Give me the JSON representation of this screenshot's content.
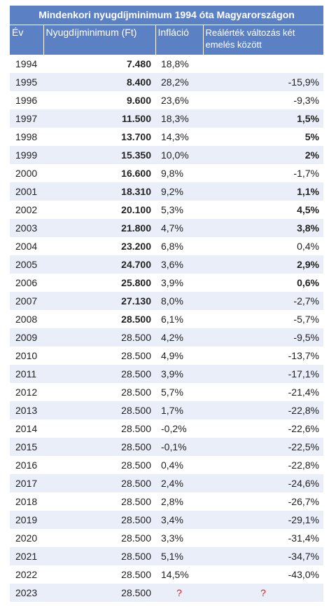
{
  "table": {
    "title": "Mindenkori nyugdíjminimum 1994 óta Magyarországon",
    "header": [
      "Év",
      "Nyugdíjminimum (Ft)",
      "Infláció",
      "Reálérték változás két emelés között"
    ],
    "rows": [
      [
        "1994",
        "7.480",
        "18,8%",
        null
      ],
      [
        "1995",
        "8.400",
        "28,2%",
        "-15,9%"
      ],
      [
        "1996",
        "9.600",
        "23,6%",
        "-9,3%"
      ],
      [
        "1997",
        "11.500",
        "18,3%",
        "1,5%"
      ],
      [
        "1998",
        "13.700",
        "14,3%",
        "5%"
      ],
      [
        "1999",
        "15.350",
        "10,0%",
        "2%"
      ],
      [
        "2000",
        "16.600",
        "9,8%",
        "-1,7%"
      ],
      [
        "2001",
        "18.310",
        "9,2%",
        "1,1%"
      ],
      [
        "2002",
        "20.100",
        "5,3%",
        "4,5%"
      ],
      [
        "2003",
        "21.800",
        "4,7%",
        "3,8%"
      ],
      [
        "2004",
        "23.200",
        "6,8%",
        "0,4%"
      ],
      [
        "2005",
        "24.700",
        "3,6%",
        "2,9%"
      ],
      [
        "2006",
        "25.800",
        "3,9%",
        "0,6%"
      ],
      [
        "2007",
        "27.130",
        "8,0%",
        "-2,7%"
      ],
      [
        "2008",
        "28.500",
        "6,1%",
        "-5,7%"
      ],
      [
        "2009",
        "28.500",
        "4,2%",
        "-9,5%"
      ],
      [
        "2010",
        "28.500",
        "4,9%",
        "-13,7%"
      ],
      [
        "2011",
        "28.500",
        "3,9%",
        "-17,1%"
      ],
      [
        "2012",
        "28.500",
        "5,7%",
        "-21,4%"
      ],
      [
        "2013",
        "28.500",
        "1,7%",
        "-22,8%"
      ],
      [
        "2014",
        "28.500",
        "-0,2%",
        "-22,6%"
      ],
      [
        "2015",
        "28.500",
        "-0,1%",
        "-22,5%"
      ],
      [
        "2016",
        "28.500",
        "0,4%",
        "-22,8%"
      ],
      [
        "2017",
        "28.500",
        "2,4%",
        "-24,6%"
      ],
      [
        "2018",
        "28.500",
        "2,8%",
        "-26,7%"
      ],
      [
        "2019",
        "28.500",
        "3,4%",
        "-29,1%"
      ],
      [
        "2020",
        "28.500",
        "3,3%",
        "-31,4%"
      ],
      [
        "2021",
        "28.500",
        "5,1%",
        "-34,7%"
      ],
      [
        "2022",
        "28.500",
        "14,5%",
        "-43,0%"
      ],
      [
        "2023",
        "28.500",
        "?",
        "?"
      ]
    ]
  }
}
